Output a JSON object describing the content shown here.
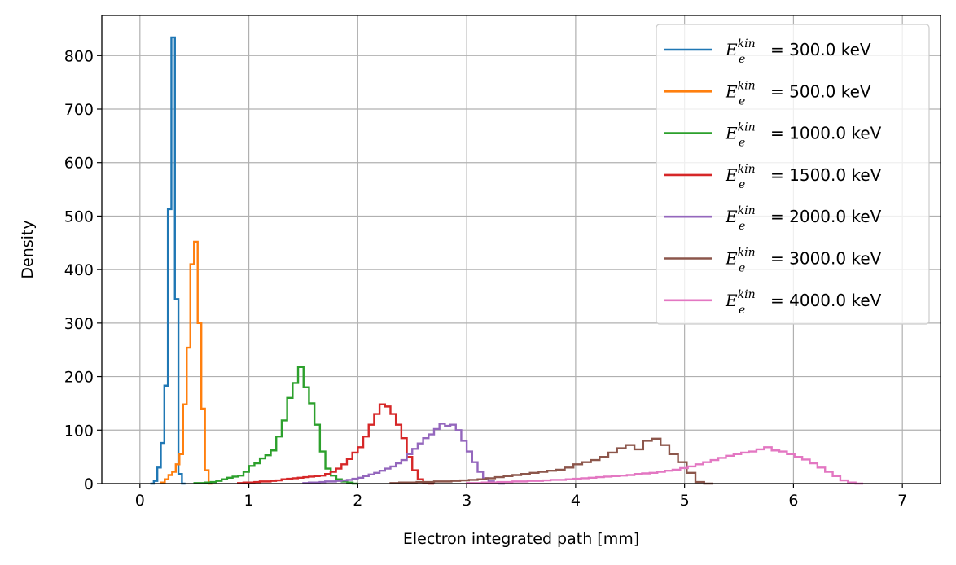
{
  "chart_data": {
    "type": "step-histogram",
    "xlabel": "Electron integrated path [mm]",
    "ylabel": "Density",
    "xlim": [
      -0.35,
      7.35
    ],
    "ylim": [
      0,
      875
    ],
    "xticks": [
      0,
      1,
      2,
      3,
      4,
      5,
      6,
      7
    ],
    "yticks": [
      0,
      100,
      200,
      300,
      400,
      500,
      600,
      700,
      800
    ],
    "grid": true,
    "legend_position": "top-right",
    "legend_symbol": "E",
    "legend_sub": "e",
    "legend_sup": "kin",
    "series": [
      {
        "name": "= 300.0 keV",
        "color": "#1f77b4",
        "bin_width": 0.0323,
        "x_start": 0.095,
        "values": [
          0,
          5,
          30,
          76,
          183,
          513,
          834,
          345,
          18,
          0
        ]
      },
      {
        "name": "= 500.0 keV",
        "color": "#ff7f0e",
        "bin_width": 0.0335,
        "x_start": 0.195,
        "values": [
          2,
          8,
          16,
          22,
          36,
          55,
          148,
          254,
          410,
          452,
          300,
          140,
          25,
          0
        ]
      },
      {
        "name": "= 1000.0 keV",
        "color": "#2ca02c",
        "bin_width": 0.0501,
        "x_start": 0.5,
        "values": [
          1,
          1,
          2,
          3,
          5,
          8,
          11,
          13,
          15,
          22,
          33,
          38,
          47,
          53,
          62,
          88,
          118,
          160,
          188,
          218,
          180,
          150,
          110,
          60,
          28,
          15,
          8,
          4,
          2,
          0
        ]
      },
      {
        "name": "= 1500.0 keV",
        "color": "#d62728",
        "bin_width": 0.05,
        "x_start": 0.9,
        "values": [
          1,
          2,
          2,
          3,
          4,
          4,
          5,
          6,
          8,
          9,
          10,
          11,
          12,
          13,
          14,
          15,
          18,
          22,
          28,
          36,
          46,
          58,
          68,
          88,
          110,
          130,
          148,
          144,
          130,
          110,
          85,
          50,
          25,
          8,
          2,
          0
        ]
      },
      {
        "name": "= 2000.0 keV",
        "color": "#9467bd",
        "bin_width": 0.05,
        "x_start": 1.5,
        "values": [
          1,
          2,
          2,
          3,
          4,
          4,
          5,
          6,
          7,
          9,
          11,
          14,
          17,
          20,
          24,
          28,
          32,
          38,
          44,
          55,
          65,
          75,
          85,
          92,
          102,
          112,
          108,
          110,
          100,
          80,
          60,
          40,
          22,
          10,
          4,
          1,
          0
        ]
      },
      {
        "name": "= 3000.0 keV",
        "color": "#8c564b",
        "bin_width": 0.08,
        "x_start": 2.3,
        "values": [
          1,
          2,
          2,
          3,
          3,
          4,
          4,
          5,
          6,
          7,
          8,
          10,
          12,
          14,
          16,
          18,
          20,
          22,
          24,
          26,
          30,
          36,
          40,
          44,
          50,
          58,
          66,
          72,
          64,
          80,
          84,
          72,
          55,
          40,
          20,
          3,
          0
        ]
      },
      {
        "name": "= 4000.0 keV",
        "color": "#e377c2",
        "bin_width": 0.07,
        "x_start": 3.0,
        "values": [
          1,
          1,
          2,
          2,
          3,
          3,
          4,
          4,
          5,
          5,
          6,
          7,
          7,
          8,
          9,
          10,
          11,
          12,
          13,
          14,
          15,
          16,
          18,
          19,
          20,
          22,
          24,
          26,
          29,
          32,
          36,
          40,
          44,
          48,
          52,
          55,
          58,
          60,
          64,
          68,
          62,
          60,
          55,
          50,
          45,
          38,
          30,
          22,
          14,
          6,
          2,
          0
        ]
      }
    ]
  }
}
